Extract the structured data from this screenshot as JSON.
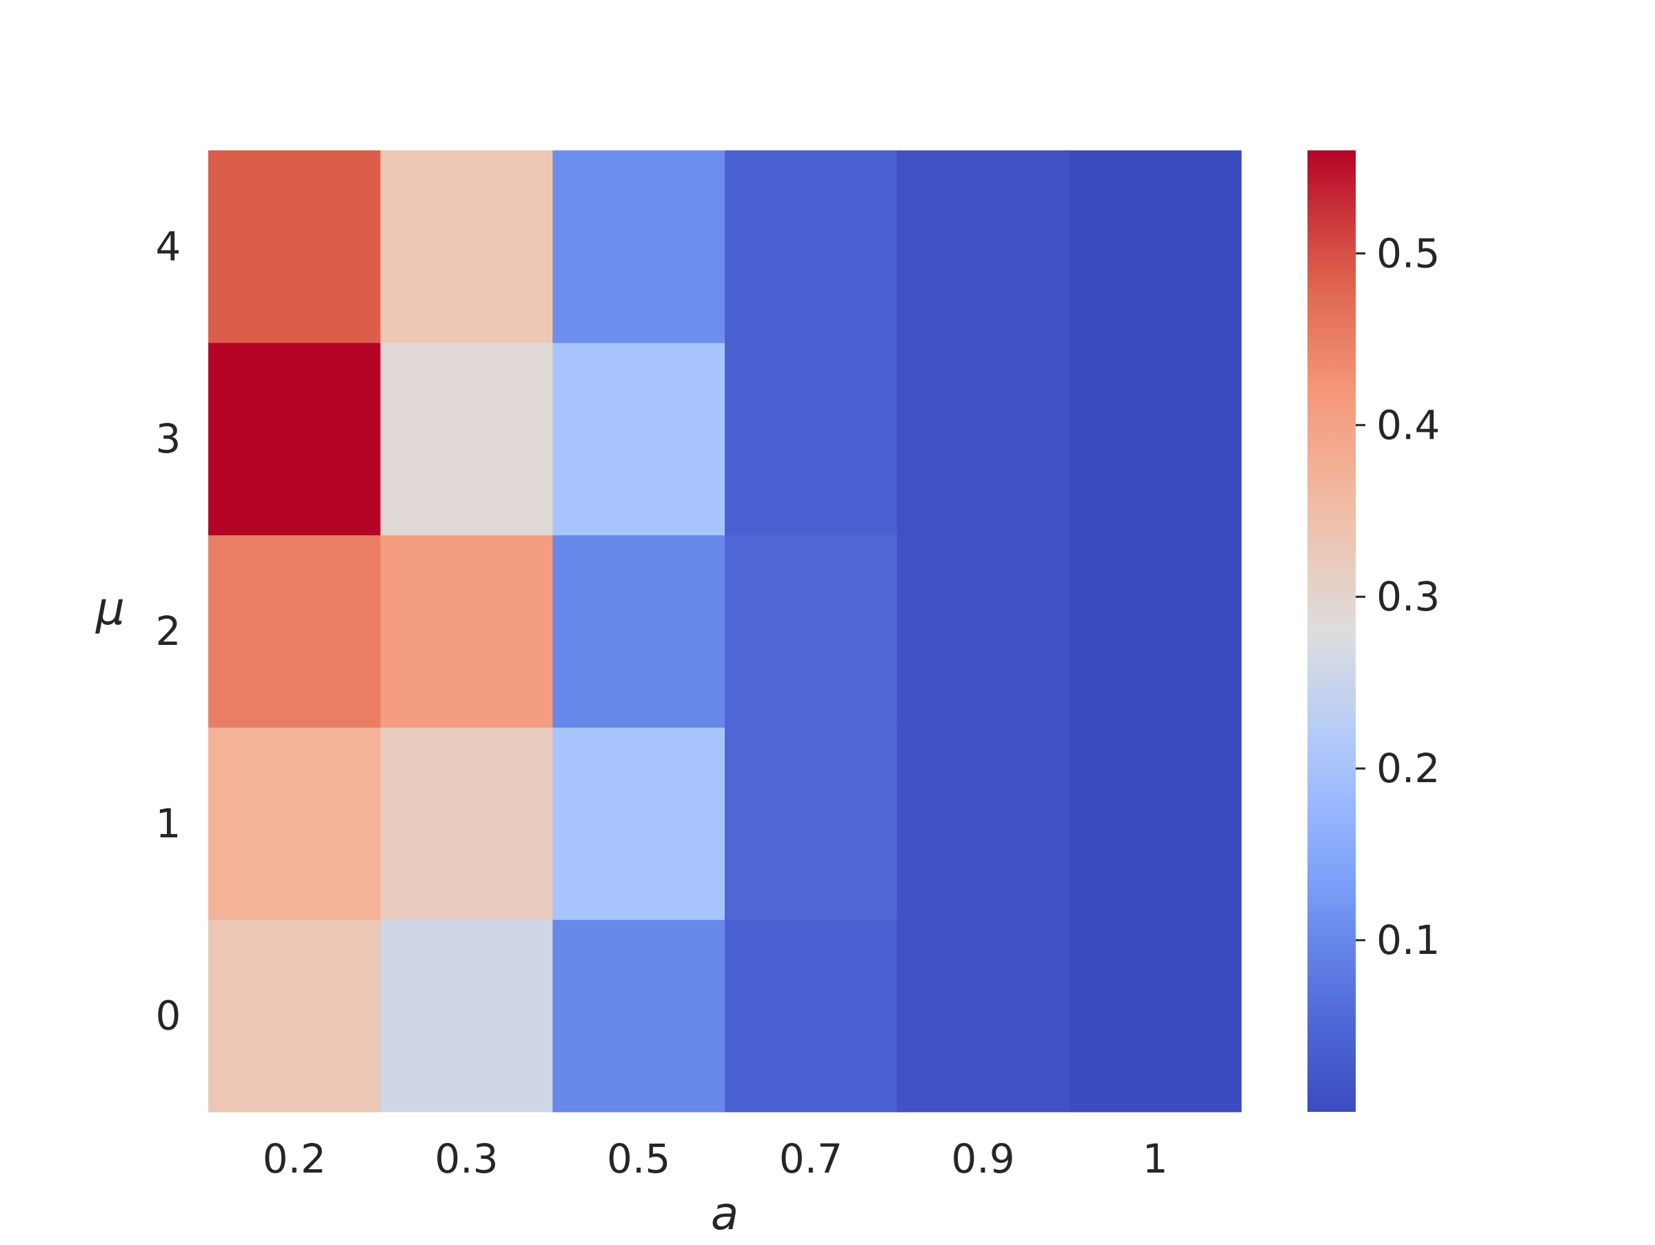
{
  "chart_data": {
    "type": "heatmap",
    "title": "",
    "xlabel": "a",
    "ylabel": "μ",
    "x_categories": [
      "0.2",
      "0.3",
      "0.5",
      "0.7",
      "0.9",
      "1"
    ],
    "y_categories": [
      "0",
      "1",
      "2",
      "3",
      "4"
    ],
    "values": [
      [
        0.33,
        0.26,
        0.1,
        0.04,
        0.01,
        0.0
      ],
      [
        0.37,
        0.32,
        0.2,
        0.05,
        0.01,
        0.0
      ],
      [
        0.45,
        0.41,
        0.1,
        0.05,
        0.01,
        0.0
      ],
      [
        0.56,
        0.29,
        0.2,
        0.04,
        0.01,
        0.0
      ],
      [
        0.49,
        0.33,
        0.11,
        0.04,
        0.01,
        0.0
      ]
    ],
    "colormap": "coolwarm",
    "vmin": 0.0,
    "vmax": 0.56,
    "colorbar": {
      "ticks": [
        0.1,
        0.2,
        0.3,
        0.4,
        0.5
      ],
      "tick_labels": [
        "0.1",
        "0.2",
        "0.3",
        "0.4",
        "0.5"
      ]
    },
    "colors": {
      "low": "#3b4cc0",
      "mid": "#dddddd",
      "high": "#b40426"
    }
  }
}
